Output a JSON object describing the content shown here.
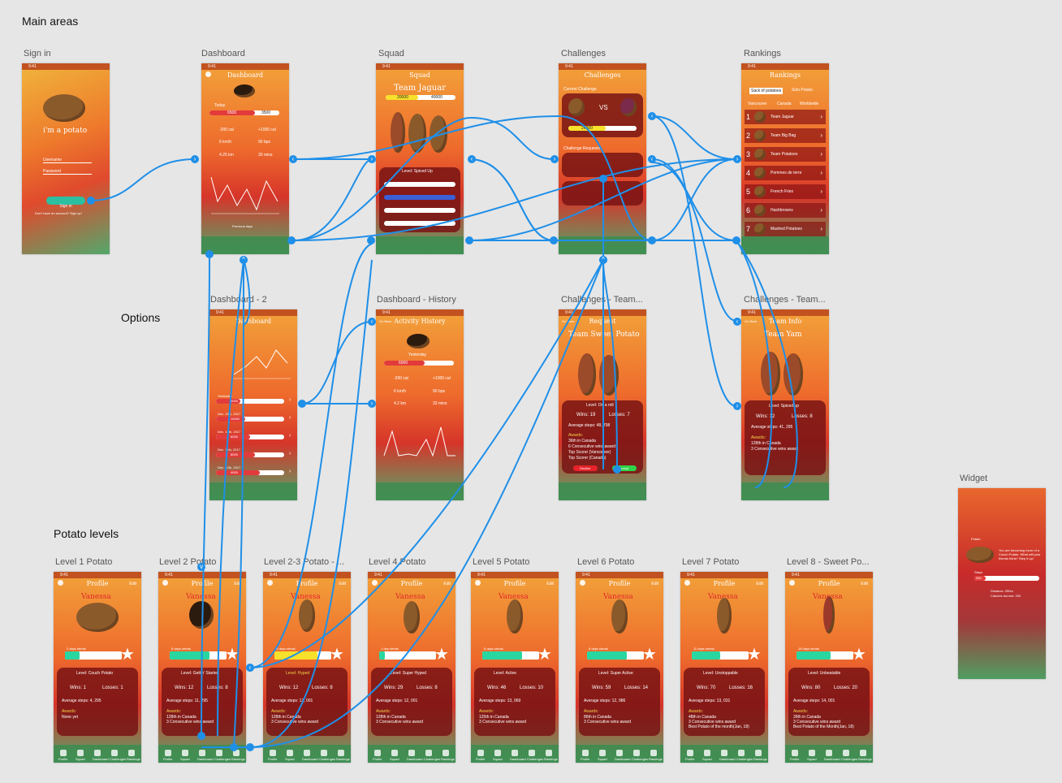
{
  "sections": {
    "main": "Main areas",
    "options": "Options",
    "levels": "Potato levels"
  },
  "frames": {
    "signin": "Sign in",
    "dashboard": "Dashboard",
    "squad": "Squad",
    "challenges": "Challenges",
    "rankings": "Rankings",
    "dashboard2": "Dashboard - 2",
    "history": "Dashboard - History",
    "ch_team1": "Challenges - Team...",
    "ch_team2": "Challenges - Team...",
    "widget": "Widget",
    "lvl1": "Level 1 Potato",
    "lvl2": "Level 2 Potato",
    "lvl23": "Level 2-3 Potato - ...",
    "lvl4": "Level 4 Potato",
    "lvl5": "Level 5 Potato",
    "lvl6": "Level 6 Potato",
    "lvl7": "Level 7 Potato",
    "lvl8": "Level 8 - Sweet Po..."
  },
  "signin": {
    "tagline": "i'm a potato",
    "username": "Username",
    "password": "Password",
    "button": "Sign in",
    "signup": "Don't have an account? Sign up!"
  },
  "dashboard": {
    "title": "Dashboard",
    "today": "Today",
    "steps": "6500",
    "goal": "3500",
    "cal_burn": "-200 cal",
    "cal_in": "+1000 cal",
    "speed": "6 km/h",
    "bpm": "90 bps",
    "dist": "4.25 km",
    "mins": "30 mins",
    "prev": "Previous days"
  },
  "squad": {
    "title": "Squad",
    "team": "Team Jaguar",
    "a": "20000",
    "b": "40000",
    "level": "Level: Spiced Up"
  },
  "challenges": {
    "title": "Challenges",
    "current": "Current Challenge",
    "vs": "VS",
    "a": "20000",
    "b": "13000",
    "requests": "Challenge Requests"
  },
  "rankings": {
    "title": "Rankings",
    "tab1": "Sack of potatoes",
    "tab2": "Solo Potato",
    "loc1": "Vancouver",
    "loc2": "Canada",
    "loc3": "Worldwide",
    "rows": [
      "Team Jaguar",
      "Team Big Bag",
      "Team Potatoes",
      "Pommes de terre",
      "French Fries",
      "Hashbrowns",
      "Mashed Potatoes"
    ]
  },
  "history": {
    "title": "Activity History",
    "back": "Go Back",
    "yesterday": "Yesterday",
    "steps": "6000",
    "cal_burn": "-200 cal",
    "cal_in": "+1000 cal",
    "speed": "6 km/h",
    "bpm": "90 bps",
    "dist": "4.2 km",
    "mins": "33 mins"
  },
  "dash2": {
    "title": "Dashboard",
    "dates": [
      "Yesterday",
      "Dec. 13th, 2017",
      "Dec. 12th, 2017",
      "Dec. 11th, 2017",
      "Dec. 10th, 2017"
    ],
    "vals": [
      "6000",
      "10000",
      "6000",
      "8000",
      "4000"
    ]
  },
  "request": {
    "title": "Request",
    "back": "Go Back",
    "team": "Team Sweet Potato",
    "level": "Level: On a roll",
    "wins": "Wins: 19",
    "losses": "Losses: 7",
    "avg": "Average steps: 48, 798",
    "awards": "Awards:",
    "a1": "36th in Canada",
    "a2": "6 Consecutive wins award",
    "a3": "Top Scorer (Vancouver)",
    "a4": "Top Scorer (Canada)",
    "decline": "Decline",
    "accept": "Accept"
  },
  "teaminfo": {
    "title": "Team Info",
    "back": "Go Back",
    "team": "Team Yam",
    "level": "Level: Spiced up",
    "wins": "Wins: 12",
    "losses": "Losses: 8",
    "avg": "Average steps: 41, 295",
    "awards": "Awards:",
    "a1": "128th in Canada",
    "a2": "3 Consecutive wins award"
  },
  "widget": {
    "app": "Potato",
    "msg": "You are becoming more of a Couch Potato. What will your friends think? Step it up!",
    "steps_label": "Steps",
    "steps": "350",
    "dist": "Distance: 250m",
    "cal": "Calories burned: 200"
  },
  "profile": {
    "title": "Profile",
    "edit": "Edit",
    "name": "Vanessa",
    "tabs": [
      "Profile",
      "Squad",
      "Dashboard",
      "Challenges",
      "Rankings"
    ]
  },
  "levels": [
    {
      "streak": "2 days streak",
      "level": "Level: Couch Potato",
      "wins": "Wins: 1",
      "losses": "Losses: 1",
      "avg": "Average steps: 4, 295",
      "a1": "None yet",
      "a2": "",
      "a3": "",
      "fill": 0.25
    },
    {
      "streak": "8 days streak",
      "level": "Level: Gettin' Started",
      "wins": "Wins: 12",
      "losses": "Losses: 8",
      "avg": "Average steps: 11, 295",
      "a1": "128th in Canada",
      "a2": "3 Consecutive wins award",
      "a3": "",
      "fill": 0.7
    },
    {
      "streak": "9 days streak",
      "level": "Level: Hyped",
      "wins": "Wins: 12",
      "losses": "Losses: 8",
      "avg": "Average steps: 12, 001",
      "a1": "128th in Canada",
      "a2": "3 Consecutive wins award",
      "a3": "",
      "fill": 0.75
    },
    {
      "streak": "1 day streak",
      "level": "Level: Super Hyped",
      "wins": "Wins: 29",
      "losses": "Losses: 8",
      "avg": "Average steps: 12, 001",
      "a1": "128th in Canada",
      "a2": "3 Consecutive wins award",
      "a3": "",
      "fill": 0.1
    },
    {
      "streak": "8 days streak",
      "level": "Level: Active",
      "wins": "Wins: 46",
      "losses": "Losses: 10",
      "avg": "Average steps: 13, 069",
      "a1": "125th in Canada",
      "a2": "3 Consecutive wins award",
      "a3": "",
      "fill": 0.7
    },
    {
      "streak": "8 days streak",
      "level": "Level: Super Active",
      "wins": "Wins: 59",
      "losses": "Losses: 14",
      "avg": "Average steps: 12, 986",
      "a1": "86th in Canada",
      "a2": "3 Consecutive wins award",
      "a3": "",
      "fill": 0.7
    },
    {
      "streak": "11 days streak",
      "level": "Level: Unstoppable",
      "wins": "Wins: 70",
      "losses": "Losses: 16",
      "avg": "Average steps: 13, 031",
      "a1": "48th in Canada",
      "a2": "3 Consecutive wins award",
      "a3": "Best Potato of the month(Jan, 18)",
      "fill": 0.5
    },
    {
      "streak": "18 days streak",
      "level": "Level: Unbeatable",
      "wins": "Wins: 80",
      "losses": "Losses: 20",
      "avg": "Average steps: 14, 001",
      "a1": "39th in Canada",
      "a2": "3 Consecutive wins award",
      "a3": "Best Potato of the Month(Jan, 18)",
      "fill": 0.6
    }
  ],
  "awards_label": "Awards:",
  "colors": {
    "wire": "#1f8fe8",
    "streak": "#2ad6a0"
  }
}
